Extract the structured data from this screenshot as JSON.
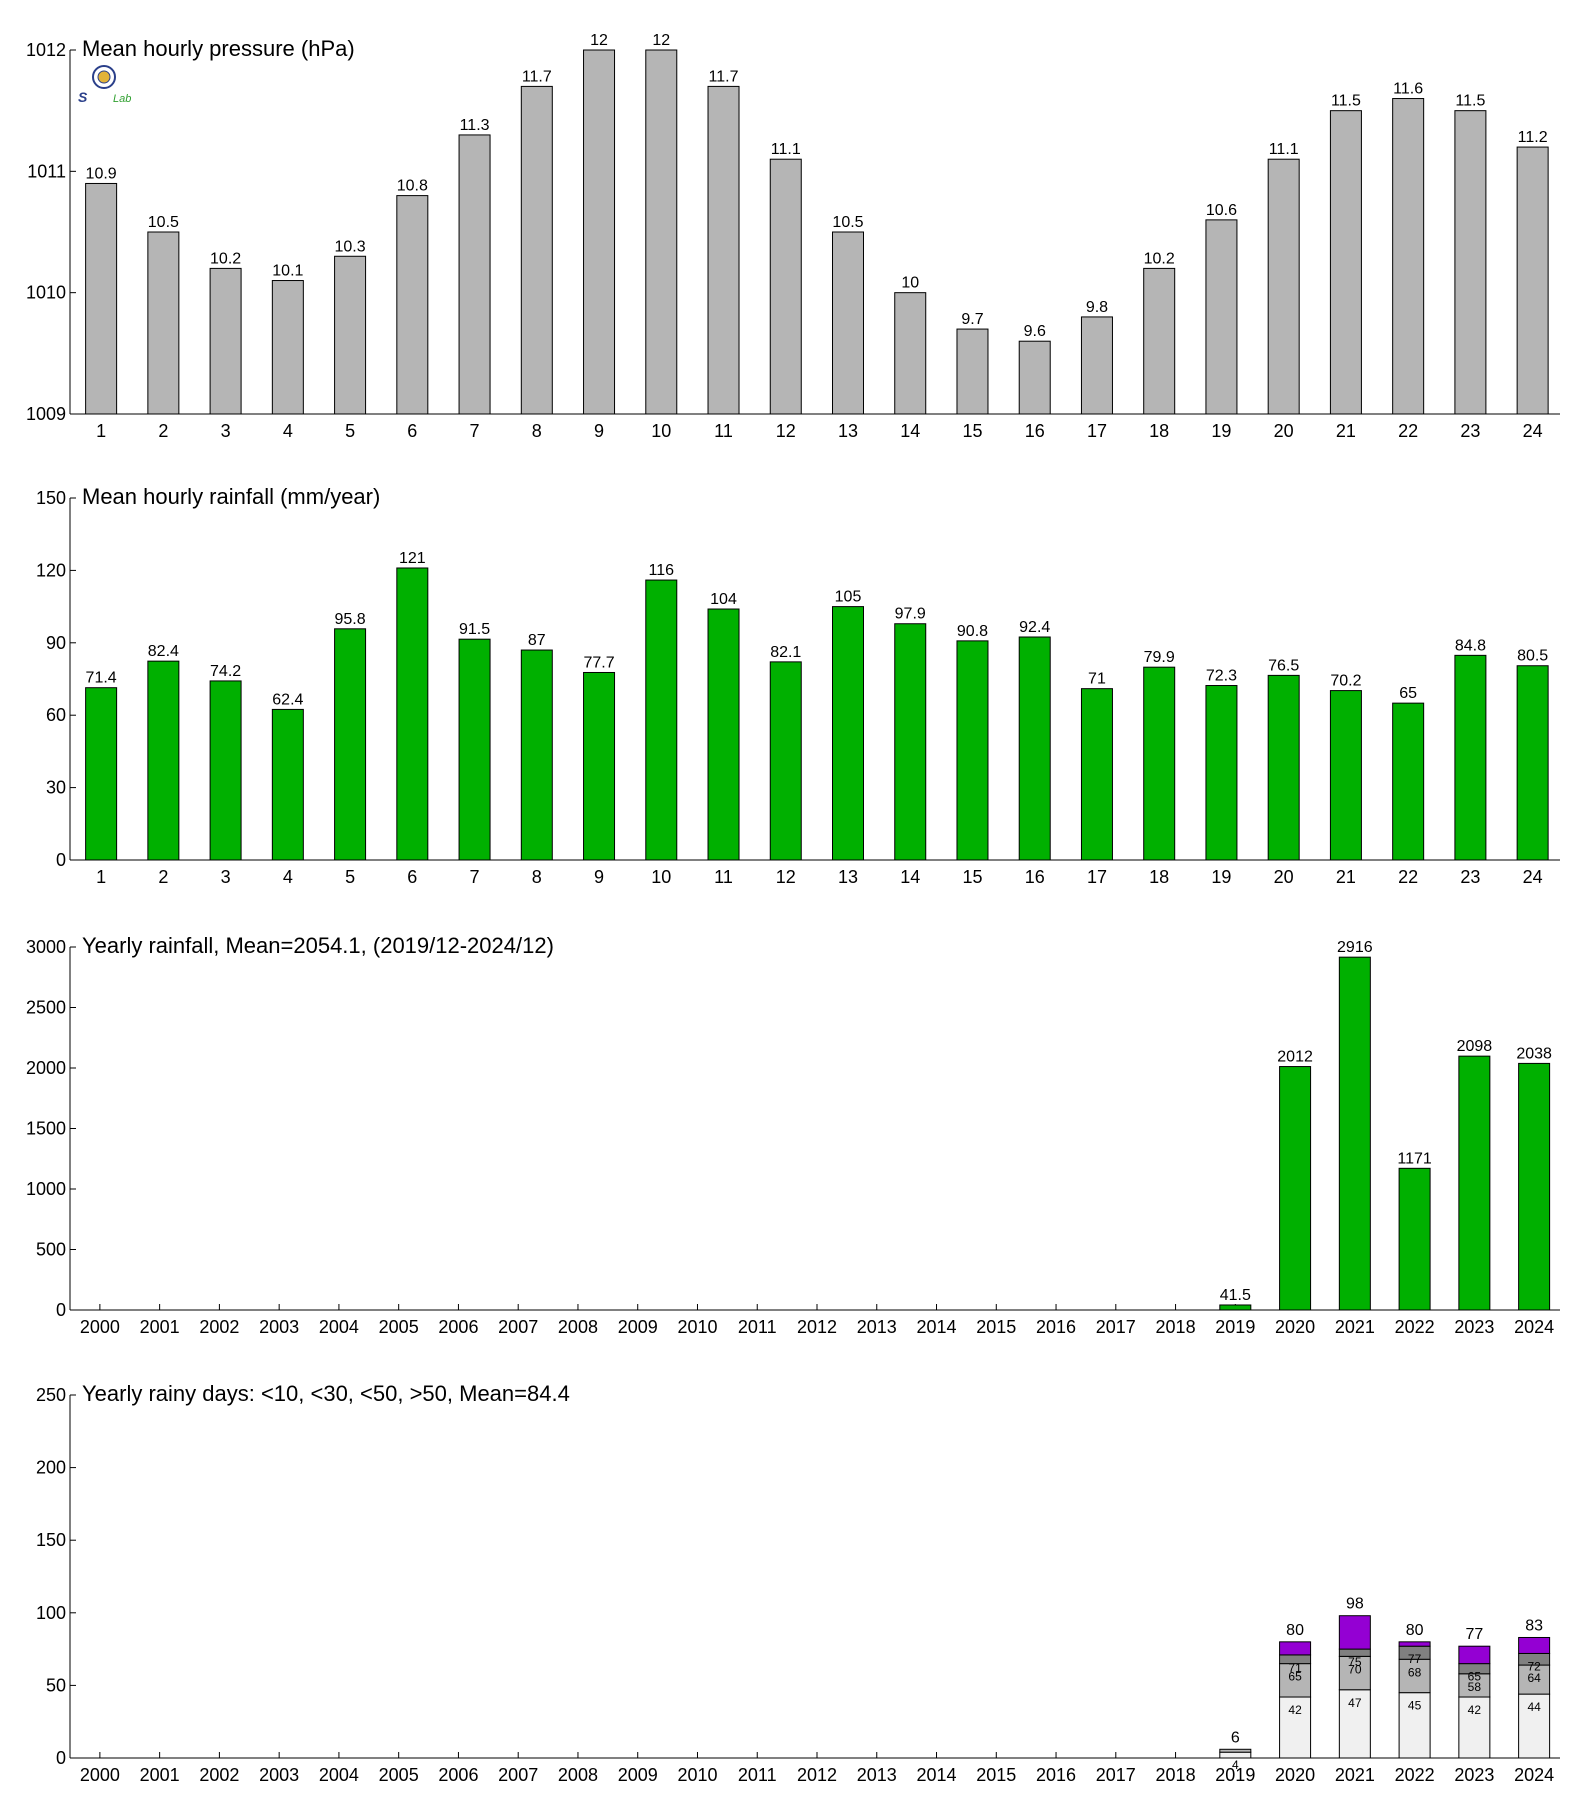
{
  "logo": {
    "icon": "seal-logo-icon",
    "text_1": "S",
    "text_2": "Lab"
  },
  "chart_data": [
    {
      "type": "bar",
      "title": "Mean hourly pressure (hPa)",
      "categories": [
        "1",
        "2",
        "3",
        "4",
        "5",
        "6",
        "7",
        "8",
        "9",
        "10",
        "11",
        "12",
        "13",
        "14",
        "15",
        "16",
        "17",
        "18",
        "19",
        "20",
        "21",
        "22",
        "23",
        "24"
      ],
      "values": [
        1010.9,
        1010.5,
        1010.2,
        1010.1,
        1010.3,
        1010.8,
        1011.3,
        1011.7,
        1012,
        1012,
        1011.7,
        1011.1,
        1010.5,
        1010,
        1009.7,
        1009.6,
        1009.8,
        1010.2,
        1010.6,
        1011.1,
        1011.5,
        1011.6,
        1011.5,
        1011.2
      ],
      "labels": [
        "10.9",
        "10.5",
        "10.2",
        "10.1",
        "10.3",
        "10.8",
        "11.3",
        "11.7",
        "12",
        "12",
        "11.7",
        "11.1",
        "10.5",
        "10",
        "9.7",
        "9.6",
        "9.8",
        "10.2",
        "10.6",
        "11.1",
        "11.5",
        "11.6",
        "11.5",
        "11.2"
      ],
      "ylim": [
        1009,
        1012
      ],
      "yticks": [
        1009,
        1010,
        1011,
        1012
      ],
      "color": "#b5b5b5"
    },
    {
      "type": "bar",
      "title": "Mean hourly rainfall (mm/year)",
      "categories": [
        "1",
        "2",
        "3",
        "4",
        "5",
        "6",
        "7",
        "8",
        "9",
        "10",
        "11",
        "12",
        "13",
        "14",
        "15",
        "16",
        "17",
        "18",
        "19",
        "20",
        "21",
        "22",
        "23",
        "24"
      ],
      "values": [
        71.4,
        82.4,
        74.2,
        62.4,
        95.8,
        121,
        91.5,
        87,
        77.7,
        116,
        104,
        82.1,
        105,
        97.9,
        90.8,
        92.4,
        71,
        79.9,
        72.3,
        76.5,
        70.2,
        65,
        84.8,
        80.5
      ],
      "labels": [
        "71.4",
        "82.4",
        "74.2",
        "62.4",
        "95.8",
        "121",
        "91.5",
        "87",
        "77.7",
        "116",
        "104",
        "82.1",
        "105",
        "97.9",
        "90.8",
        "92.4",
        "71",
        "79.9",
        "72.3",
        "76.5",
        "70.2",
        "65",
        "84.8",
        "80.5"
      ],
      "ylim": [
        0,
        150
      ],
      "yticks": [
        0,
        30,
        60,
        90,
        120,
        150
      ],
      "color": "#00b000"
    },
    {
      "type": "bar",
      "title": "Yearly rainfall, Mean=2054.1, (2019/12-2024/12)",
      "categories": [
        "2000",
        "2001",
        "2002",
        "2003",
        "2004",
        "2005",
        "2006",
        "2007",
        "2008",
        "2009",
        "2010",
        "2011",
        "2012",
        "2013",
        "2014",
        "2015",
        "2016",
        "2017",
        "2018",
        "2019",
        "2020",
        "2021",
        "2022",
        "2023",
        "2024"
      ],
      "values": [
        null,
        null,
        null,
        null,
        null,
        null,
        null,
        null,
        null,
        null,
        null,
        null,
        null,
        null,
        null,
        null,
        null,
        null,
        null,
        41.5,
        2012,
        2916,
        1171,
        2098,
        2038
      ],
      "labels": [
        "",
        "",
        "",
        "",
        "",
        "",
        "",
        "",
        "",
        "",
        "",
        "",
        "",
        "",
        "",
        "",
        "",
        "",
        "",
        "41.5",
        "2012",
        "2916",
        "1171",
        "2098",
        "2038"
      ],
      "ylim": [
        0,
        3000
      ],
      "yticks": [
        0,
        500,
        1000,
        1500,
        2000,
        2500,
        3000
      ],
      "color": "#00b000"
    },
    {
      "type": "bar",
      "stacked": true,
      "title": "Yearly rainy days: <10, <30, <50, >50, Mean=84.4",
      "categories": [
        "2000",
        "2001",
        "2002",
        "2003",
        "2004",
        "2005",
        "2006",
        "2007",
        "2008",
        "2009",
        "2010",
        "2011",
        "2012",
        "2013",
        "2014",
        "2015",
        "2016",
        "2017",
        "2018",
        "2019",
        "2020",
        "2021",
        "2022",
        "2023",
        "2024"
      ],
      "series": [
        {
          "values": [
            null,
            null,
            null,
            null,
            null,
            null,
            null,
            null,
            null,
            null,
            null,
            null,
            null,
            null,
            null,
            null,
            null,
            null,
            null,
            4,
            42,
            47,
            45,
            42,
            44
          ],
          "color": "#f0f0f0",
          "cum_labels": [
            "",
            "",
            "",
            "",
            "",
            "",
            "",
            "",
            "",
            "",
            "",
            "",
            "",
            "",
            "",
            "",
            "",
            "",
            "",
            "4",
            "42",
            "47",
            "45",
            "42",
            "44"
          ]
        },
        {
          "values": [
            null,
            null,
            null,
            null,
            null,
            null,
            null,
            null,
            null,
            null,
            null,
            null,
            null,
            null,
            null,
            null,
            null,
            null,
            null,
            2,
            23,
            23,
            23,
            16,
            20
          ],
          "color": "#b5b5b5",
          "cum_labels": [
            "",
            "",
            "",
            "",
            "",
            "",
            "",
            "",
            "",
            "",
            "",
            "",
            "",
            "",
            "",
            "",
            "",
            "",
            "",
            "",
            "65",
            "70",
            "68",
            "58",
            "64"
          ]
        },
        {
          "values": [
            null,
            null,
            null,
            null,
            null,
            null,
            null,
            null,
            null,
            null,
            null,
            null,
            null,
            null,
            null,
            null,
            null,
            null,
            null,
            0,
            6,
            5,
            9,
            7,
            8
          ],
          "color": "#808080",
          "cum_labels": [
            "",
            "",
            "",
            "",
            "",
            "",
            "",
            "",
            "",
            "",
            "",
            "",
            "",
            "",
            "",
            "",
            "",
            "",
            "",
            "",
            "71",
            "75",
            "77",
            "65",
            "72"
          ]
        },
        {
          "values": [
            null,
            null,
            null,
            null,
            null,
            null,
            null,
            null,
            null,
            null,
            null,
            null,
            null,
            null,
            null,
            null,
            null,
            null,
            null,
            0,
            9,
            23,
            3,
            12,
            11
          ],
          "color": "#9400d3",
          "cum_labels": [
            "",
            "",
            "",
            "",
            "",
            "",
            "",
            "",
            "",
            "",
            "",
            "",
            "",
            "",
            "",
            "",
            "",
            "",
            "",
            "",
            "",
            "",
            "",
            "",
            ""
          ]
        }
      ],
      "totals": [
        "",
        "",
        "",
        "",
        "",
        "",
        "",
        "",
        "",
        "",
        "",
        "",
        "",
        "",
        "",
        "",
        "",
        "",
        "",
        "6",
        "80",
        "98",
        "80",
        "77",
        "83"
      ],
      "ylim": [
        0,
        250
      ],
      "yticks": [
        0,
        50,
        100,
        150,
        200,
        250
      ]
    }
  ]
}
